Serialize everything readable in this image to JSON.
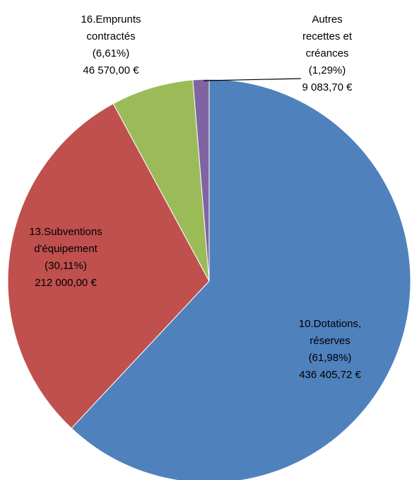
{
  "chart_data": {
    "type": "pie",
    "categories": [
      "10.Dotations, réserves",
      "13.Subventions d'équipement",
      "16.Emprunts contractés",
      "Autres recettes et créances"
    ],
    "values": [
      61.98,
      30.11,
      6.61,
      1.29
    ],
    "value_labels": [
      "(61,98%)",
      "(30,11%)",
      "(6,61%)",
      "(1,29%)"
    ],
    "amounts": [
      "436 405,72 €",
      "212 000,00 €",
      "46 570,00 €",
      "9 083,70 €"
    ],
    "colors": [
      "#4f81bd",
      "#c0504d",
      "#9bbb59",
      "#8064a2"
    ]
  }
}
